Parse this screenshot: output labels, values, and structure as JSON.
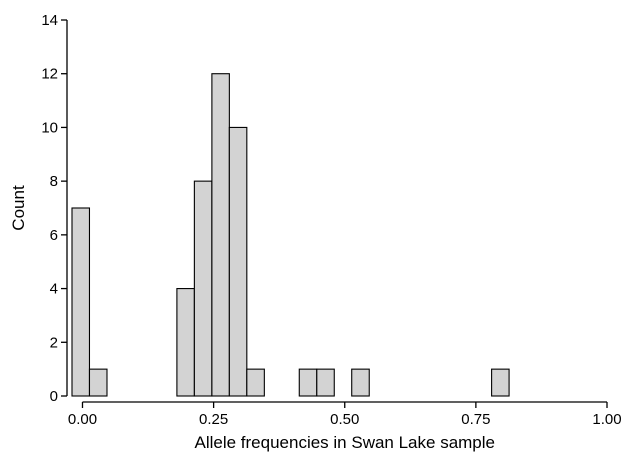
{
  "chart_data": {
    "type": "bar",
    "title": "",
    "xlabel": "Allele frequencies in Swan Lake sample",
    "ylabel": "Count",
    "xlim": [
      -0.02,
      1.0
    ],
    "ylim": [
      0,
      14
    ],
    "bin_width": 0.0333,
    "x_ticks": [
      "0.00",
      "0.25",
      "0.50",
      "0.75",
      "1.00"
    ],
    "x_tick_values": [
      0,
      0.25,
      0.5,
      0.75,
      1.0
    ],
    "y_ticks": [
      "0",
      "2",
      "4",
      "6",
      "8",
      "10",
      "12",
      "14"
    ],
    "y_tick_values": [
      0,
      2,
      4,
      6,
      8,
      10,
      12,
      14
    ],
    "bins": [
      {
        "start": -0.02,
        "end": 0.0133,
        "count": 7
      },
      {
        "start": 0.0133,
        "end": 0.0467,
        "count": 1
      },
      {
        "start": 0.18,
        "end": 0.2133,
        "count": 4
      },
      {
        "start": 0.2133,
        "end": 0.2467,
        "count": 8
      },
      {
        "start": 0.2467,
        "end": 0.28,
        "count": 12
      },
      {
        "start": 0.28,
        "end": 0.3133,
        "count": 10
      },
      {
        "start": 0.3133,
        "end": 0.3467,
        "count": 1
      },
      {
        "start": 0.4133,
        "end": 0.4467,
        "count": 1
      },
      {
        "start": 0.4467,
        "end": 0.48,
        "count": 1
      },
      {
        "start": 0.5133,
        "end": 0.5467,
        "count": 1
      },
      {
        "start": 0.78,
        "end": 0.8133,
        "count": 1
      }
    ],
    "grid": false,
    "legend": "none"
  }
}
